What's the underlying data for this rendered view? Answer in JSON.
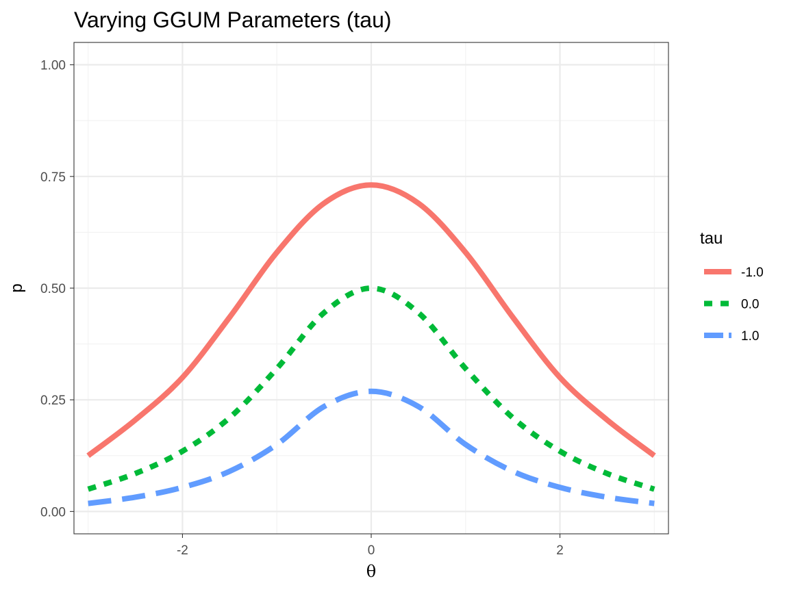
{
  "chart_data": {
    "type": "line",
    "title": "Varying GGUM Parameters (tau)",
    "xlabel": "θ",
    "ylabel": "p",
    "xlim": [
      -3.15,
      3.15
    ],
    "ylim": [
      -0.05,
      1.05
    ],
    "x_ticks": [
      -2,
      0,
      2
    ],
    "x_tick_labels": [
      "-2",
      "0",
      "2"
    ],
    "y_ticks": [
      0,
      0.25,
      0.5,
      0.75,
      1.0
    ],
    "y_tick_labels": [
      "0.00",
      "0.25",
      "0.50",
      "0.75",
      "1.00"
    ],
    "grid": true,
    "legend": {
      "title": "tau",
      "position": "right"
    },
    "x": [
      -3.0,
      -2.5,
      -2.0,
      -1.5,
      -1.0,
      -0.5,
      0.0,
      0.5,
      1.0,
      1.5,
      2.0,
      2.5,
      3.0
    ],
    "series": [
      {
        "name": "-1.0",
        "color": "#F8766D",
        "dash": "solid",
        "values": [
          0.125,
          0.205,
          0.3,
          0.435,
          0.58,
          0.69,
          0.731,
          0.69,
          0.58,
          0.435,
          0.3,
          0.205,
          0.125
        ]
      },
      {
        "name": "0.0",
        "color": "#00BA38",
        "dash": "dotted",
        "values": [
          0.05,
          0.085,
          0.135,
          0.21,
          0.32,
          0.445,
          0.5,
          0.445,
          0.32,
          0.21,
          0.135,
          0.085,
          0.05
        ]
      },
      {
        "name": "1.0",
        "color": "#619CFF",
        "dash": "dashed",
        "values": [
          0.018,
          0.032,
          0.054,
          0.09,
          0.15,
          0.235,
          0.269,
          0.235,
          0.15,
          0.09,
          0.054,
          0.032,
          0.018
        ]
      }
    ]
  }
}
